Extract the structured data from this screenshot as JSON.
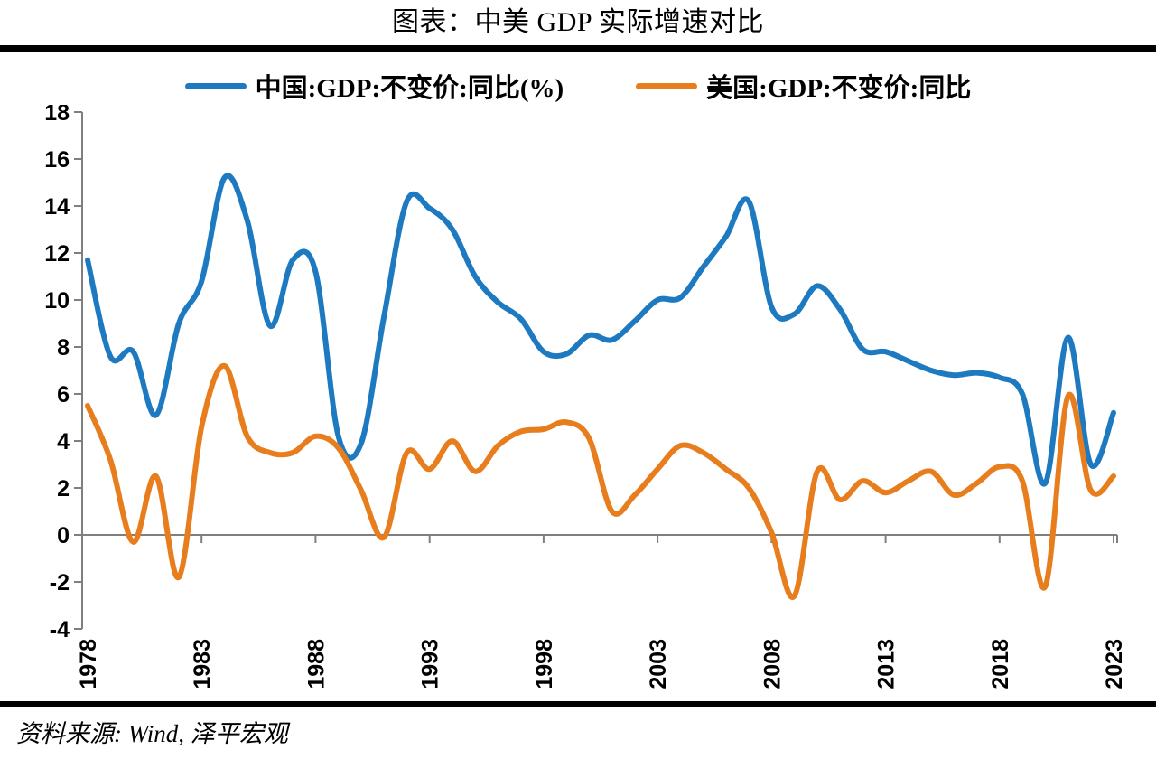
{
  "title": "图表：中美 GDP 实际增速对比",
  "source_note": "资料来源: Wind, 泽平宏观",
  "chart_data": {
    "type": "line",
    "title": "图表：中美 GDP 实际增速对比",
    "xlabel": "",
    "ylabel": "",
    "ylim": [
      -4,
      18
    ],
    "ytick_step": 2,
    "grid": false,
    "legend_position": "top",
    "smooth_lines": true,
    "axis_color": "#7F7F7F",
    "zero_baseline": true,
    "x": [
      1978,
      1979,
      1980,
      1981,
      1982,
      1983,
      1984,
      1985,
      1986,
      1987,
      1988,
      1989,
      1990,
      1991,
      1992,
      1993,
      1994,
      1995,
      1996,
      1997,
      1998,
      1999,
      2000,
      2001,
      2002,
      2003,
      2004,
      2005,
      2006,
      2007,
      2008,
      2009,
      2010,
      2011,
      2012,
      2013,
      2014,
      2015,
      2016,
      2017,
      2018,
      2019,
      2020,
      2021,
      2022,
      2023
    ],
    "xtick_labels": [
      "1978",
      "1983",
      "1988",
      "1993",
      "1998",
      "2003",
      "2008",
      "2013",
      "2018",
      "2023"
    ],
    "series": [
      {
        "name": "中国:GDP:不变价:同比(%)",
        "color": "#1E7AC0",
        "values": [
          11.7,
          7.6,
          7.8,
          5.1,
          9.0,
          10.8,
          15.2,
          13.4,
          8.9,
          11.7,
          11.2,
          4.2,
          3.9,
          9.3,
          14.2,
          13.9,
          13.0,
          11.0,
          9.9,
          9.2,
          7.8,
          7.7,
          8.5,
          8.3,
          9.1,
          10.0,
          10.1,
          11.4,
          12.7,
          14.2,
          9.7,
          9.4,
          10.6,
          9.6,
          7.9,
          7.8,
          7.4,
          7.0,
          6.8,
          6.9,
          6.7,
          6.0,
          2.2,
          8.4,
          3.0,
          5.2
        ]
      },
      {
        "name": "美国:GDP:不变价:同比",
        "color": "#E87D1E",
        "values": [
          5.5,
          3.2,
          -0.3,
          2.5,
          -1.8,
          4.6,
          7.2,
          4.2,
          3.5,
          3.5,
          4.2,
          3.7,
          1.9,
          -0.1,
          3.5,
          2.8,
          4.0,
          2.7,
          3.8,
          4.4,
          4.5,
          4.8,
          4.1,
          1.0,
          1.7,
          2.8,
          3.8,
          3.5,
          2.8,
          2.0,
          0.1,
          -2.6,
          2.7,
          1.5,
          2.3,
          1.8,
          2.3,
          2.7,
          1.7,
          2.2,
          2.9,
          2.3,
          -2.2,
          5.9,
          1.9,
          2.5
        ]
      }
    ]
  }
}
